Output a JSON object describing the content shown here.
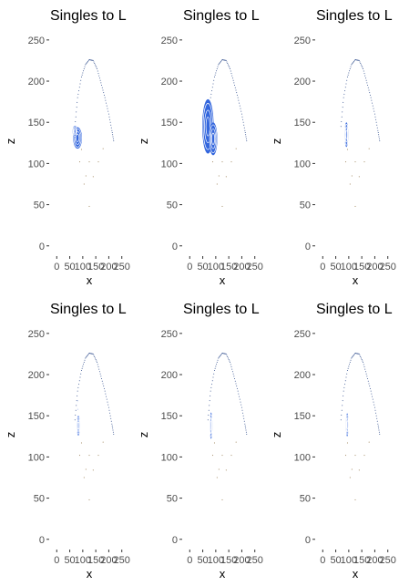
{
  "colors": {
    "fill": "#3366dd",
    "contour": "#ffffff",
    "field_line": "#2c4a8a",
    "infield_dots": "#8a6a3a",
    "background": "#ffffff"
  },
  "chart_data": [
    {
      "type": "density-contour",
      "title": "Singles to L",
      "xlabel": "x",
      "ylabel": "z",
      "xlim": [
        -15,
        265
      ],
      "ylim": [
        -8,
        262
      ],
      "xticks": [
        0,
        50,
        100,
        150,
        200,
        250
      ],
      "xtick_labels": [
        "0",
        "50",
        "100",
        "150",
        "200",
        "250"
      ],
      "yticks": [
        0,
        50,
        100,
        150,
        200,
        250
      ],
      "ytick_labels": [
        "0",
        "50",
        "100",
        "150",
        "200",
        "250"
      ],
      "grid": false,
      "density_regions": [
        {
          "cx": 80,
          "cy": 131,
          "rx": 17,
          "ry": 13
        },
        {
          "cx": 70,
          "cy": 139,
          "rx": 9,
          "ry": 7
        }
      ]
    },
    {
      "type": "density-contour",
      "title": "Singles to L",
      "xlabel": "x",
      "ylabel": "z",
      "xlim": [
        -15,
        265
      ],
      "ylim": [
        -8,
        262
      ],
      "xticks": [
        0,
        50,
        100,
        150,
        200,
        250
      ],
      "xtick_labels": [
        "0",
        "50",
        "100",
        "150",
        "200",
        "250"
      ],
      "yticks": [
        0,
        50,
        100,
        150,
        200,
        250
      ],
      "ytick_labels": [
        "0",
        "50",
        "100",
        "150",
        "200",
        "250"
      ],
      "grid": false,
      "density_regions": [
        {
          "cx": 70,
          "cy": 145,
          "rx": 22,
          "ry": 33
        },
        {
          "cx": 90,
          "cy": 130,
          "rx": 16,
          "ry": 20
        }
      ]
    },
    {
      "type": "density-contour",
      "title": "Singles to L",
      "xlabel": "x",
      "ylabel": "z",
      "xlim": [
        -15,
        265
      ],
      "ylim": [
        -8,
        262
      ],
      "xticks": [
        0,
        50,
        100,
        150,
        200,
        250
      ],
      "xtick_labels": [
        "0",
        "50",
        "100",
        "150",
        "200",
        "250"
      ],
      "yticks": [
        0,
        50,
        100,
        150,
        200,
        250
      ],
      "ytick_labels": [
        "0",
        "50",
        "100",
        "150",
        "200",
        "250"
      ],
      "grid": false,
      "density_regions": [
        {
          "cx": 91,
          "cy": 135,
          "rx": 7,
          "ry": 15
        }
      ]
    },
    {
      "type": "density-contour",
      "title": "Singles to L",
      "xlabel": "x",
      "ylabel": "z",
      "xlim": [
        -15,
        265
      ],
      "ylim": [
        -8,
        262
      ],
      "xticks": [
        0,
        50,
        100,
        150,
        200,
        250
      ],
      "xtick_labels": [
        "0",
        "50",
        "100",
        "150",
        "200",
        "250"
      ],
      "yticks": [
        0,
        50,
        100,
        150,
        200,
        250
      ],
      "ytick_labels": [
        "0",
        "50",
        "100",
        "150",
        "200",
        "250"
      ],
      "grid": false,
      "density_regions": [
        {
          "cx": 83,
          "cy": 138,
          "rx": 6,
          "ry": 12
        },
        {
          "cx": 81,
          "cy": 163,
          "rx": 2,
          "ry": 6
        }
      ]
    },
    {
      "type": "density-contour",
      "title": "Singles to L",
      "xlabel": "x",
      "ylabel": "z",
      "xlim": [
        -15,
        265
      ],
      "ylim": [
        -8,
        262
      ],
      "xticks": [
        0,
        50,
        100,
        150,
        200,
        250
      ],
      "xtick_labels": [
        "0",
        "50",
        "100",
        "150",
        "200",
        "250"
      ],
      "yticks": [
        0,
        50,
        100,
        150,
        200,
        250
      ],
      "ytick_labels": [
        "0",
        "50",
        "100",
        "150",
        "200",
        "250"
      ],
      "grid": false,
      "density_regions": [
        {
          "cx": 82,
          "cy": 138,
          "rx": 5,
          "ry": 16
        }
      ]
    },
    {
      "type": "density-contour",
      "title": "Singles to L",
      "xlabel": "x",
      "ylabel": "z",
      "xlim": [
        -15,
        265
      ],
      "ylim": [
        -8,
        262
      ],
      "xticks": [
        0,
        50,
        100,
        150,
        200,
        250
      ],
      "xtick_labels": [
        "0",
        "50",
        "100",
        "150",
        "200",
        "250"
      ],
      "yticks": [
        0,
        50,
        100,
        150,
        200,
        250
      ],
      "ytick_labels": [
        "0",
        "50",
        "100",
        "150",
        "200",
        "250"
      ],
      "grid": false,
      "density_regions": [
        {
          "cx": 94,
          "cy": 139,
          "rx": 5,
          "ry": 14
        }
      ]
    }
  ],
  "field_outline": {
    "arc": [
      [
        70,
        145
      ],
      [
        80,
        180
      ],
      [
        95,
        205
      ],
      [
        110,
        220
      ],
      [
        125,
        226
      ],
      [
        140,
        225
      ],
      [
        155,
        215
      ],
      [
        170,
        198
      ],
      [
        185,
        180
      ],
      [
        200,
        160
      ],
      [
        212,
        140
      ],
      [
        220,
        125
      ]
    ],
    "infield": [
      [
        95,
        117
      ],
      [
        112,
        85
      ],
      [
        125,
        102
      ],
      [
        140,
        84
      ],
      [
        160,
        102
      ],
      [
        178,
        118
      ],
      [
        125,
        48
      ],
      [
        105,
        75
      ],
      [
        88,
        102
      ]
    ]
  }
}
